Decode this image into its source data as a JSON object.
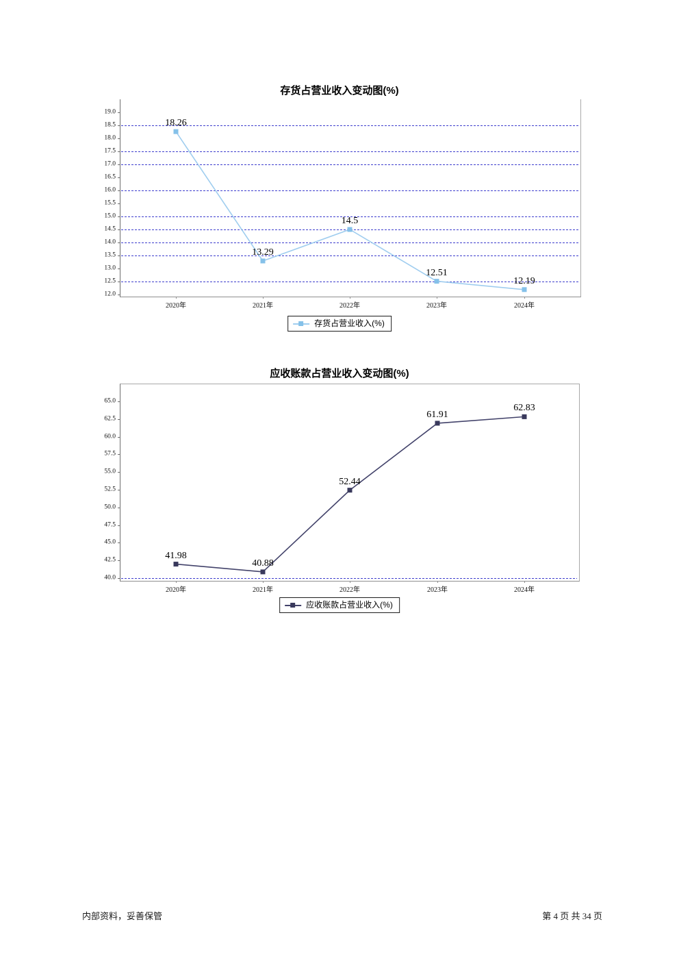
{
  "page_footer": {
    "left": "内部资料，妥善保管",
    "right": "第 4 页  共 34 页"
  },
  "chart_data": [
    {
      "type": "line",
      "title": "存货占营业收入变动图(%)",
      "legend": [
        "存货占营业收入(%)"
      ],
      "legend_position": "bottom",
      "categories": [
        "2020年",
        "2021年",
        "2022年",
        "2023年",
        "2024年"
      ],
      "series": [
        {
          "name": "存货占营业收入(%)",
          "values": [
            18.26,
            13.29,
            14.5,
            12.51,
            12.19
          ]
        }
      ],
      "point_labels": [
        "18.26",
        "13.29",
        "14.5",
        "12.51",
        "12.19"
      ],
      "ylim": [
        12.0,
        19.0
      ],
      "y_tick_step": 0.5,
      "y_ticks": [
        "19.0",
        "18.5",
        "18.0",
        "17.5",
        "17.0",
        "16.5",
        "16.0",
        "15.5",
        "15.0",
        "14.5",
        "14.0",
        "13.5",
        "13.0",
        "12.5",
        "12.0"
      ],
      "gridline_values": [
        18.5,
        17.5,
        17.0,
        16.0,
        15.0,
        14.5,
        14.0,
        13.5,
        12.5
      ],
      "grid_on": true,
      "grid_color": "#3c3ccd",
      "line_color": "#9fcdef",
      "marker_color": "#85c1e9"
    },
    {
      "type": "line",
      "title": "应收账款占营业收入变动图(%)",
      "legend": [
        "应收账款占营业收入(%)"
      ],
      "legend_position": "bottom",
      "categories": [
        "2020年",
        "2021年",
        "2022年",
        "2023年",
        "2024年"
      ],
      "series": [
        {
          "name": "应收账款占营业收入(%)",
          "values": [
            41.98,
            40.88,
            52.44,
            61.91,
            62.83
          ]
        }
      ],
      "point_labels": [
        "41.98",
        "40.88",
        "52.44",
        "61.91",
        "62.83"
      ],
      "ylim": [
        40.0,
        65.0
      ],
      "y_tick_step": 2.5,
      "y_ticks": [
        "65.0",
        "62.5",
        "60.0",
        "57.5",
        "55.0",
        "52.5",
        "50.0",
        "47.5",
        "45.0",
        "42.5",
        "40.0"
      ],
      "gridline_values": [
        40.0
      ],
      "grid_on": true,
      "grid_color": "#3c3ccd",
      "line_color": "#42426a",
      "marker_color": "#39395c"
    }
  ]
}
